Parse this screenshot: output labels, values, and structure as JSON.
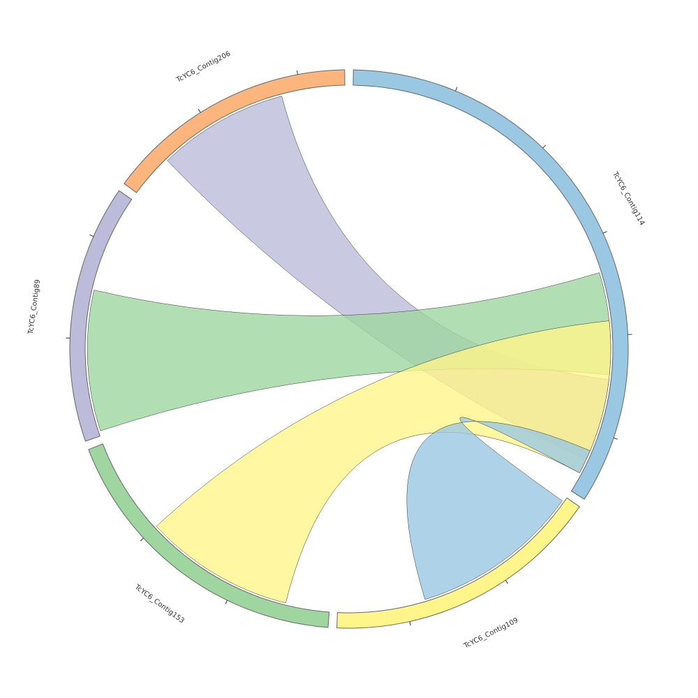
{
  "chart_data": {
    "type": "chord",
    "nodes": [
      {
        "name": "TcYC6_Contig114",
        "color": "#9ac8e2",
        "length": 113,
        "ticks": [
          20,
          40,
          60,
          80,
          100
        ]
      },
      {
        "name": "TcYC6_Contig109",
        "color": "#fff58a",
        "length": 54,
        "ticks": [
          20,
          40
        ]
      },
      {
        "name": "TcYC6_Contig153",
        "color": "#9fd6a0",
        "length": 60,
        "ticks": [
          20,
          40
        ]
      },
      {
        "name": "TcYC6_Contig89",
        "color": "#bcbbd9",
        "length": 50,
        "ticks": [
          20,
          40
        ]
      },
      {
        "name": "TcYC6_Contig206",
        "color": "#fdb57e",
        "length": 49,
        "ticks": [
          20,
          40
        ]
      }
    ],
    "links": [
      {
        "source": 4,
        "source_range": [
          9,
          36
        ],
        "target": 0,
        "target_range": [
          89,
          106
        ],
        "color": "#bcbbd9"
      },
      {
        "source": 3,
        "source_range": [
          1,
          30
        ],
        "target": 0,
        "target_range": [
          67,
          88
        ],
        "color": "#9fd6a0"
      },
      {
        "source": 2,
        "source_range": [
          9,
          40
        ],
        "target": 0,
        "target_range": [
          77,
          109
        ],
        "color": "#fff58a"
      },
      {
        "source": 1,
        "source_range": [
          1,
          36
        ],
        "target": 0,
        "target_range": [
          104,
          109
        ],
        "color": "#9ac8e2"
      }
    ]
  }
}
